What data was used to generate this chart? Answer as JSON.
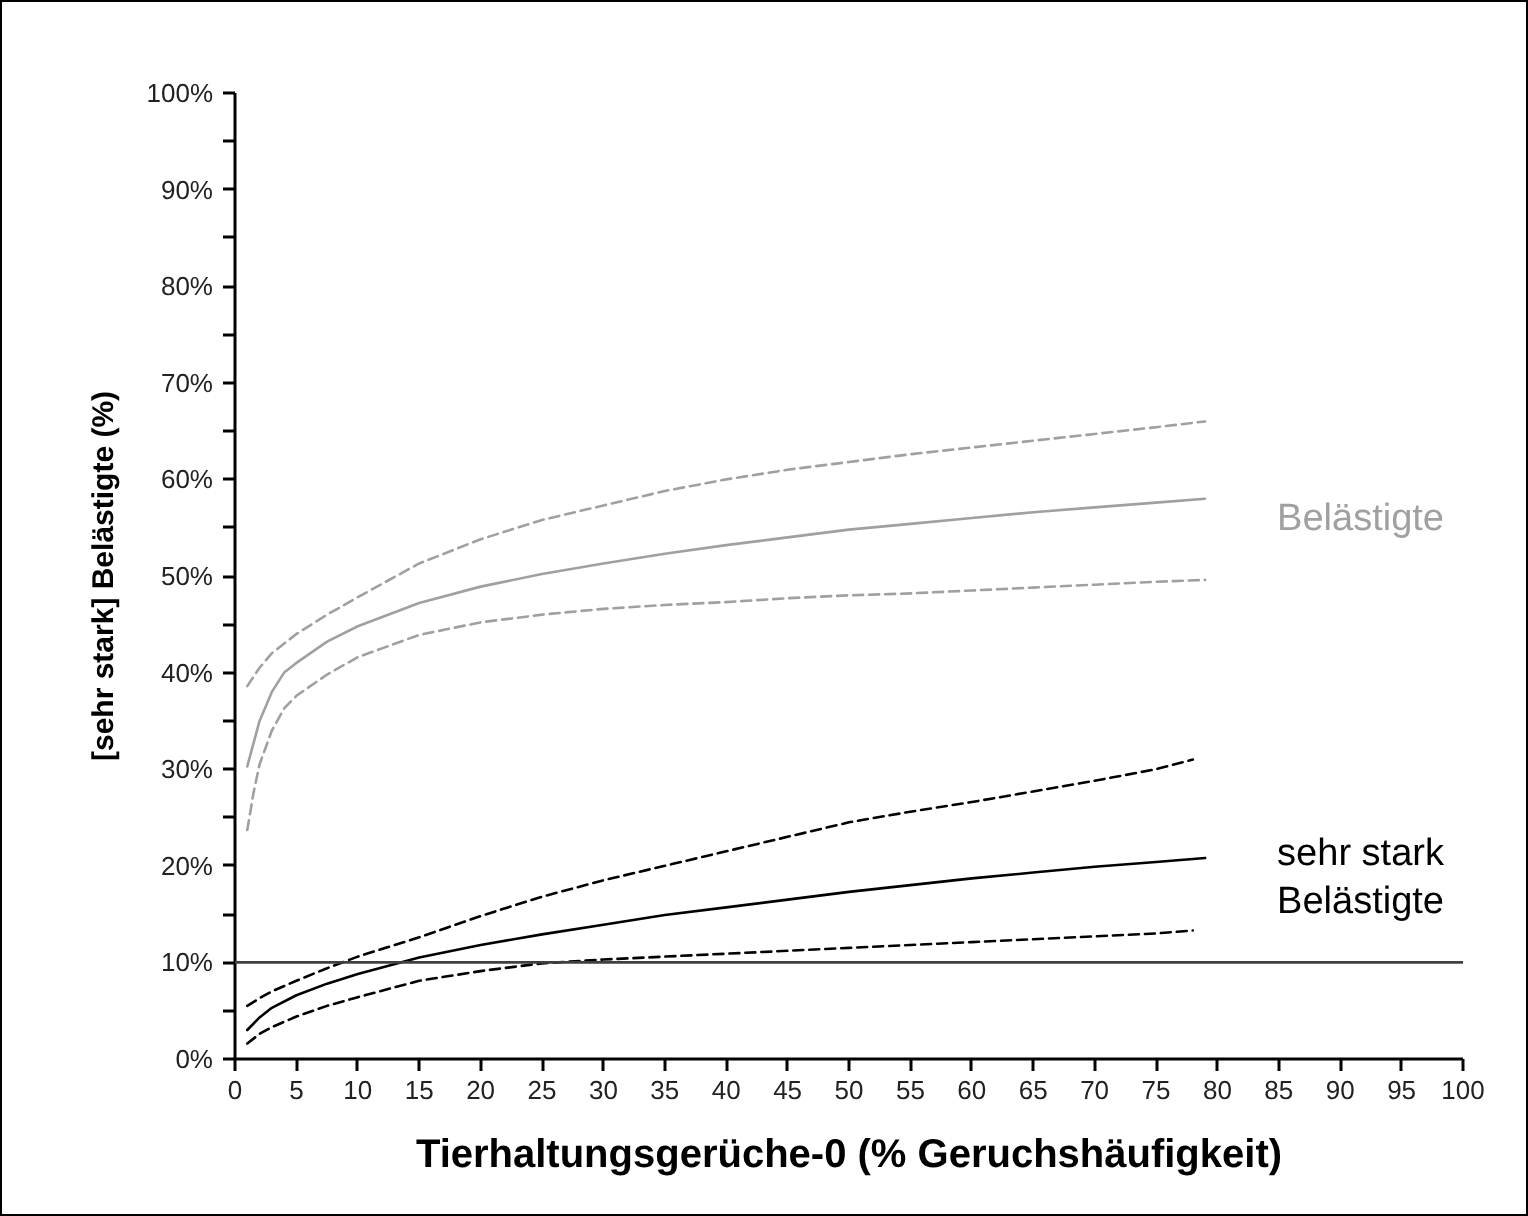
{
  "chart_data": {
    "type": "line",
    "xlabel": "Tierhaltungsgerüche-0 (% Geruchshäufigkeit)",
    "ylabel": "[sehr stark] Belästigte (%)",
    "xlim": [
      0,
      100
    ],
    "ylim": [
      0,
      100
    ],
    "xticks": [
      0,
      5,
      10,
      15,
      20,
      25,
      30,
      35,
      40,
      45,
      50,
      55,
      60,
      65,
      70,
      75,
      80,
      85,
      90,
      95,
      100
    ],
    "yticks": [
      {
        "value": 0,
        "label": "0%"
      },
      {
        "value": 5,
        "label": null
      },
      {
        "value": 10,
        "label": "10%"
      },
      {
        "value": 15,
        "label": null
      },
      {
        "value": 20,
        "label": "20%"
      },
      {
        "value": 25,
        "label": null
      },
      {
        "value": 30,
        "label": "30%"
      },
      {
        "value": 35,
        "label": null
      },
      {
        "value": 40,
        "label": "40%"
      },
      {
        "value": 45,
        "label": null
      },
      {
        "value": 50,
        "label": "50%"
      },
      {
        "value": 55,
        "label": null
      },
      {
        "value": 60,
        "label": "60%"
      },
      {
        "value": 65,
        "label": null
      },
      {
        "value": 70,
        "label": "70%"
      },
      {
        "value": 75,
        "label": null
      },
      {
        "value": 80,
        "label": "80%"
      },
      {
        "value": 85,
        "label": null
      },
      {
        "value": 90,
        "label": "90%"
      },
      {
        "value": 95,
        "label": null
      },
      {
        "value": 100,
        "label": "100%"
      }
    ],
    "grid": false,
    "ref_lines": [
      {
        "axis": "y",
        "value": 10,
        "color": "#404040",
        "line_style": "solid"
      }
    ],
    "series": [
      {
        "name": "Belästigte",
        "color": "#a0a0a0",
        "line_style": "solid",
        "x": [
          1,
          2,
          3,
          4,
          5,
          7.5,
          10,
          15,
          20,
          25,
          30,
          35,
          40,
          45,
          50,
          55,
          60,
          65,
          70,
          75,
          79
        ],
        "values": [
          30.3,
          35,
          38,
          40,
          41,
          43.2,
          44.8,
          47.2,
          48.9,
          50.2,
          51.3,
          52.3,
          53.2,
          54.0,
          54.8,
          55.4,
          56,
          56.6,
          57.1,
          57.6,
          58.0
        ]
      },
      {
        "color": "#a0a0a0",
        "line_style": "dashed",
        "x": [
          1,
          2,
          3,
          5,
          7.5,
          10,
          15,
          20,
          25,
          30,
          35,
          40,
          45,
          50,
          55,
          60,
          65,
          70,
          75,
          79
        ],
        "values": [
          38.6,
          40.5,
          42,
          44,
          46,
          47.8,
          51.3,
          53.8,
          55.8,
          57.3,
          58.8,
          60,
          61,
          61.8,
          62.6,
          63.3,
          64,
          64.7,
          65.4,
          66.0
        ]
      },
      {
        "color": "#a0a0a0",
        "line_style": "dashed",
        "x": [
          1,
          1.5,
          2,
          3,
          4,
          5,
          7.5,
          10,
          15,
          20,
          25,
          30,
          35,
          40,
          45,
          50,
          55,
          60,
          65,
          70,
          75,
          79
        ],
        "values": [
          23.7,
          27.5,
          30.5,
          34,
          36.3,
          37.6,
          39.8,
          41.6,
          43.9,
          45.2,
          46,
          46.6,
          47,
          47.3,
          47.7,
          48,
          48.2,
          48.5,
          48.8,
          49.1,
          49.4,
          49.6
        ]
      },
      {
        "name": "sehr stark\nBelästigte",
        "color": "#000000",
        "line_style": "solid",
        "x": [
          1,
          2,
          3,
          5,
          7.5,
          10,
          15,
          20,
          25,
          30,
          35,
          40,
          45,
          50,
          55,
          60,
          65,
          70,
          75,
          79
        ],
        "values": [
          3,
          4.3,
          5.3,
          6.6,
          7.8,
          8.8,
          10.5,
          11.8,
          12.9,
          13.9,
          14.9,
          15.7,
          16.5,
          17.3,
          18,
          18.7,
          19.3,
          19.9,
          20.4,
          20.8
        ]
      },
      {
        "color": "#000000",
        "line_style": "dashed",
        "x": [
          1,
          2,
          3,
          5,
          7.5,
          10,
          15,
          20,
          25,
          30,
          35,
          40,
          45,
          50,
          55,
          60,
          65,
          70,
          75,
          78
        ],
        "values": [
          5.5,
          6.3,
          7,
          8.1,
          9.4,
          10.6,
          12.6,
          14.8,
          16.8,
          18.5,
          20,
          21.5,
          23,
          24.5,
          25.6,
          26.6,
          27.7,
          28.8,
          30,
          31
        ]
      },
      {
        "color": "#000000",
        "line_style": "dashed",
        "x": [
          1,
          2,
          3,
          5,
          7.5,
          10,
          15,
          20,
          25,
          30,
          35,
          40,
          45,
          50,
          55,
          60,
          65,
          70,
          75,
          78
        ],
        "values": [
          1.6,
          2.6,
          3.3,
          4.4,
          5.5,
          6.4,
          8.1,
          9.1,
          9.9,
          10.3,
          10.6,
          10.9,
          11.2,
          11.5,
          11.8,
          12.1,
          12.4,
          12.7,
          13,
          13.3
        ]
      }
    ]
  }
}
